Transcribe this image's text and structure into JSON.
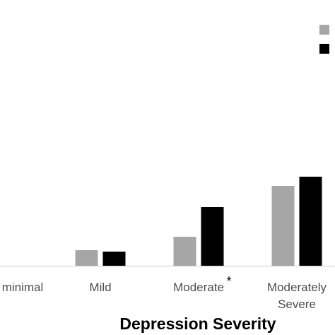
{
  "chart_data": {
    "type": "bar",
    "xlabel": "Depression Severity",
    "categories": [
      {
        "lines": [
          "minimal"
        ]
      },
      {
        "lines": [
          "Mild"
        ]
      },
      {
        "lines": [
          "Moderate"
        ],
        "marker": "*"
      },
      {
        "lines": [
          "Moderately",
          "Severe"
        ]
      }
    ],
    "series": [
      {
        "color": "#a6a6a6",
        "values": [
          0,
          2.2,
          4.1,
          11.3
        ]
      },
      {
        "color": "#000000",
        "values": [
          0,
          2.0,
          8.3,
          12.6
        ]
      }
    ],
    "ylim": [
      0,
      37.5
    ],
    "grid": false,
    "legend": {
      "position": "top-right",
      "labels_visible": false
    }
  }
}
